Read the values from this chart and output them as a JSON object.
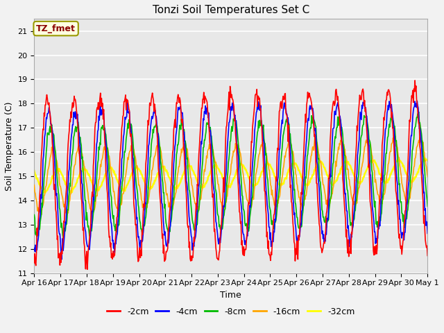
{
  "title": "Tonzi Soil Temperatures Set C",
  "xlabel": "Time",
  "ylabel": "Soil Temperature (C)",
  "ylim": [
    11.0,
    21.5
  ],
  "yticks": [
    11.0,
    12.0,
    13.0,
    14.0,
    15.0,
    16.0,
    17.0,
    18.0,
    19.0,
    20.0,
    21.0
  ],
  "xtick_labels": [
    "Apr 16",
    "Apr 17",
    "Apr 18",
    "Apr 19",
    "Apr 20",
    "Apr 21",
    "Apr 22",
    "Apr 23",
    "Apr 24",
    "Apr 25",
    "Apr 26",
    "Apr 27",
    "Apr 28",
    "Apr 29",
    "Apr 30",
    "May 1"
  ],
  "annotation_text": "TZ_fmet",
  "annotation_color": "#8B0000",
  "annotation_bg": "#FFFFE0",
  "annotation_border": "#999900",
  "series": {
    "-2cm": {
      "color": "#FF0000",
      "linewidth": 1.2
    },
    "-4cm": {
      "color": "#0000FF",
      "linewidth": 1.2
    },
    "-8cm": {
      "color": "#00BB00",
      "linewidth": 1.2
    },
    "-16cm": {
      "color": "#FFA500",
      "linewidth": 1.2
    },
    "-32cm": {
      "color": "#FFFF00",
      "linewidth": 1.8
    }
  },
  "bg_color": "#E8E8E8",
  "plot_bg_color": "#E8E8E8",
  "fig_bg_color": "#F2F2F2",
  "grid_color": "#FFFFFF",
  "n_points": 720,
  "n_days": 15
}
